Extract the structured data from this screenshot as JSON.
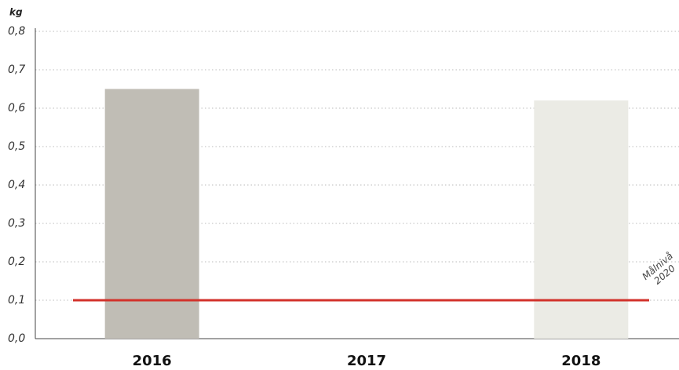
{
  "chart_data": {
    "type": "bar",
    "y_label": "kg",
    "categories": [
      "2016",
      "2017",
      "2018"
    ],
    "values": [
      0.65,
      null,
      0.62
    ],
    "colors": [
      "#c0bdb5",
      "#d8d6d0",
      "#ebebe5"
    ],
    "ylim": [
      0,
      0.8
    ],
    "yticks": [
      {
        "value": 0,
        "label": "0,0"
      },
      {
        "value": 0.1,
        "label": "0,1"
      },
      {
        "value": 0.2,
        "label": "0,2"
      },
      {
        "value": 0.3,
        "label": "0,3"
      },
      {
        "value": 0.4,
        "label": "0,4"
      },
      {
        "value": 0.5,
        "label": "0,5"
      },
      {
        "value": 0.6,
        "label": "0,6"
      },
      {
        "value": 0.7,
        "label": "0,7"
      },
      {
        "value": 0.8,
        "label": "0,8"
      }
    ],
    "grid": true,
    "target_line": {
      "value": 0.1,
      "color": "#d2322b",
      "label_lines": [
        "Målnivå",
        "2020"
      ]
    }
  }
}
